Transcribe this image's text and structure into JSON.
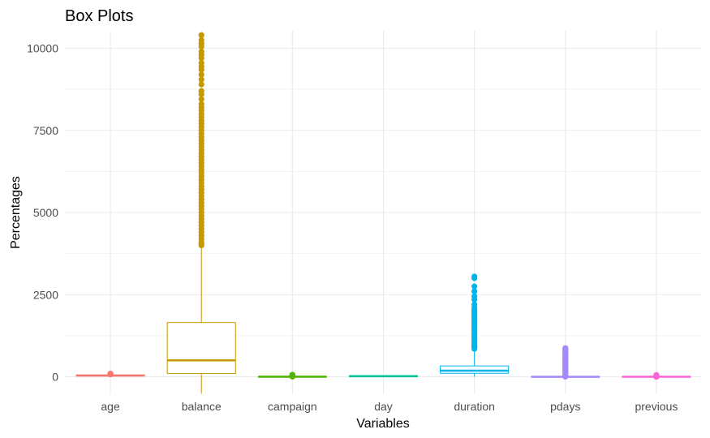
{
  "chart_data": {
    "type": "boxplot",
    "title": "Box Plots",
    "xlabel": "Variables",
    "ylabel": "Percentages",
    "ylim": [
      -500,
      10500
    ],
    "yticks": [
      0,
      2500,
      5000,
      7500,
      10000
    ],
    "grid": true,
    "legend": "none",
    "categories": [
      "age",
      "balance",
      "campaign",
      "day",
      "duration",
      "pdays",
      "previous"
    ],
    "series": [
      {
        "category": "age",
        "color": "#F8766D",
        "whisker_low": 18,
        "q1": 33,
        "median": 39,
        "q3": 48,
        "whisker_high": 70,
        "outliers": [
          72,
          74,
          76,
          78,
          80,
          82,
          84,
          86,
          88,
          90,
          92,
          95
        ]
      },
      {
        "category": "balance",
        "color": "#C49A00",
        "whisker_low": -500,
        "q1": 100,
        "median": 500,
        "q3": 1650,
        "whisker_high": 3970,
        "outliers": [
          4000,
          4050,
          4100,
          4200,
          4300,
          4400,
          4500,
          4600,
          4700,
          4800,
          4900,
          5000,
          5100,
          5200,
          5300,
          5400,
          5500,
          5600,
          5700,
          5800,
          5900,
          6000,
          6100,
          6200,
          6300,
          6400,
          6500,
          6600,
          6700,
          6800,
          6900,
          7000,
          7100,
          7200,
          7300,
          7400,
          7500,
          7600,
          7700,
          7800,
          7900,
          8000,
          8100,
          8200,
          8300,
          8450,
          8600,
          8700,
          8900,
          9050,
          9200,
          9350,
          9450,
          9550,
          9700,
          9800,
          9900,
          10050,
          10150,
          10250,
          10400
        ]
      },
      {
        "category": "campaign",
        "color": "#53B400",
        "whisker_low": 1,
        "q1": 1,
        "median": 2,
        "q3": 3,
        "whisker_high": 6,
        "outliers": [
          7,
          8,
          9,
          10,
          12,
          14,
          16,
          18,
          20,
          25,
          30,
          35,
          40,
          45,
          50,
          55,
          60,
          63
        ]
      },
      {
        "category": "day",
        "color": "#00C094",
        "whisker_low": 1,
        "q1": 8,
        "median": 16,
        "q3": 21,
        "whisker_high": 31,
        "outliers": []
      },
      {
        "category": "duration",
        "color": "#00B6EB",
        "whisker_low": 0,
        "q1": 105,
        "median": 185,
        "q3": 330,
        "whisker_high": 840,
        "outliers": [
          850,
          880,
          900,
          930,
          960,
          1000,
          1040,
          1080,
          1120,
          1160,
          1200,
          1250,
          1300,
          1350,
          1400,
          1450,
          1500,
          1550,
          1600,
          1650,
          1700,
          1750,
          1800,
          1850,
          1900,
          1950,
          2000,
          2050,
          2100,
          2200,
          2350,
          2450,
          2600,
          2750,
          3000,
          3050
        ]
      },
      {
        "category": "pdays",
        "color": "#A58AFF",
        "whisker_low": -1,
        "q1": -1,
        "median": -1,
        "q3": -1,
        "whisker_high": -1,
        "outliers": [
          1,
          10,
          30,
          60,
          90,
          120,
          150,
          180,
          210,
          240,
          270,
          300,
          330,
          360,
          390,
          420,
          450,
          480,
          510,
          540,
          570,
          600,
          630,
          660,
          690,
          720,
          750,
          780,
          810,
          840,
          854,
          871
        ]
      },
      {
        "category": "previous",
        "color": "#FB61D7",
        "whisker_low": 0,
        "q1": 0,
        "median": 0,
        "q3": 0,
        "whisker_high": 0,
        "outliers": [
          1,
          2,
          3,
          4,
          5,
          6,
          8,
          10,
          12,
          15,
          20,
          25,
          30,
          40,
          55
        ]
      }
    ]
  }
}
